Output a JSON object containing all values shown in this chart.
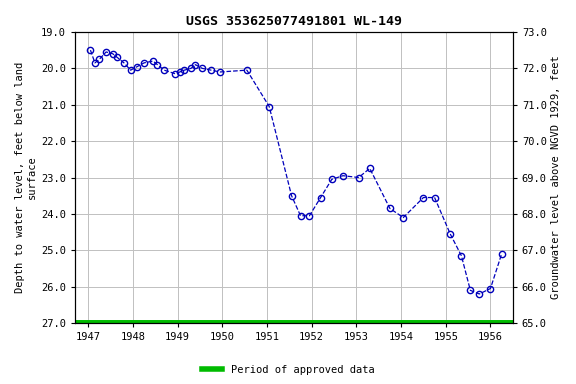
{
  "title": "USGS 353625077491801 WL-149",
  "ylabel_left": "Depth to water level, feet below land\nsurface",
  "ylabel_right": "Groundwater level above NGVD 1929, feet",
  "ylim_left": [
    27.0,
    19.0
  ],
  "ylim_right": [
    65.0,
    73.0
  ],
  "xlim": [
    1946.7,
    1956.5
  ],
  "xticks": [
    1947,
    1948,
    1949,
    1950,
    1951,
    1952,
    1953,
    1954,
    1955,
    1956
  ],
  "yticks_left": [
    19.0,
    20.0,
    21.0,
    22.0,
    23.0,
    24.0,
    25.0,
    26.0,
    27.0
  ],
  "yticks_right": [
    65.0,
    66.0,
    67.0,
    68.0,
    69.0,
    70.0,
    71.0,
    72.0,
    73.0
  ],
  "line_color": "#0000BB",
  "marker_color": "#0000BB",
  "green_bar_color": "#00BB00",
  "background_color": "#ffffff",
  "grid_color": "#c0c0c0",
  "legend_label": "Period of approved data",
  "x_data": [
    1947.05,
    1947.15,
    1947.25,
    1947.4,
    1947.55,
    1947.65,
    1947.8,
    1947.95,
    1948.1,
    1948.25,
    1948.45,
    1948.55,
    1948.7,
    1948.95,
    1949.05,
    1949.15,
    1949.3,
    1949.4,
    1949.55,
    1949.75,
    1949.95,
    1950.55,
    1951.05,
    1951.55,
    1951.75,
    1951.95,
    1952.2,
    1952.45,
    1952.7,
    1953.05,
    1953.3,
    1953.75,
    1954.05,
    1954.5,
    1954.75,
    1955.1,
    1955.35,
    1955.55,
    1955.75,
    1956.0,
    1956.25
  ],
  "y_data": [
    19.5,
    19.85,
    19.75,
    19.55,
    19.6,
    19.7,
    19.85,
    20.05,
    19.95,
    19.85,
    19.8,
    19.9,
    20.05,
    20.15,
    20.1,
    20.05,
    20.0,
    19.9,
    20.0,
    20.05,
    20.1,
    20.05,
    21.05,
    23.5,
    24.05,
    24.05,
    23.55,
    23.05,
    22.95,
    23.0,
    22.75,
    23.85,
    24.1,
    23.55,
    23.55,
    24.55,
    25.15,
    26.1,
    26.2,
    26.05,
    25.1
  ]
}
